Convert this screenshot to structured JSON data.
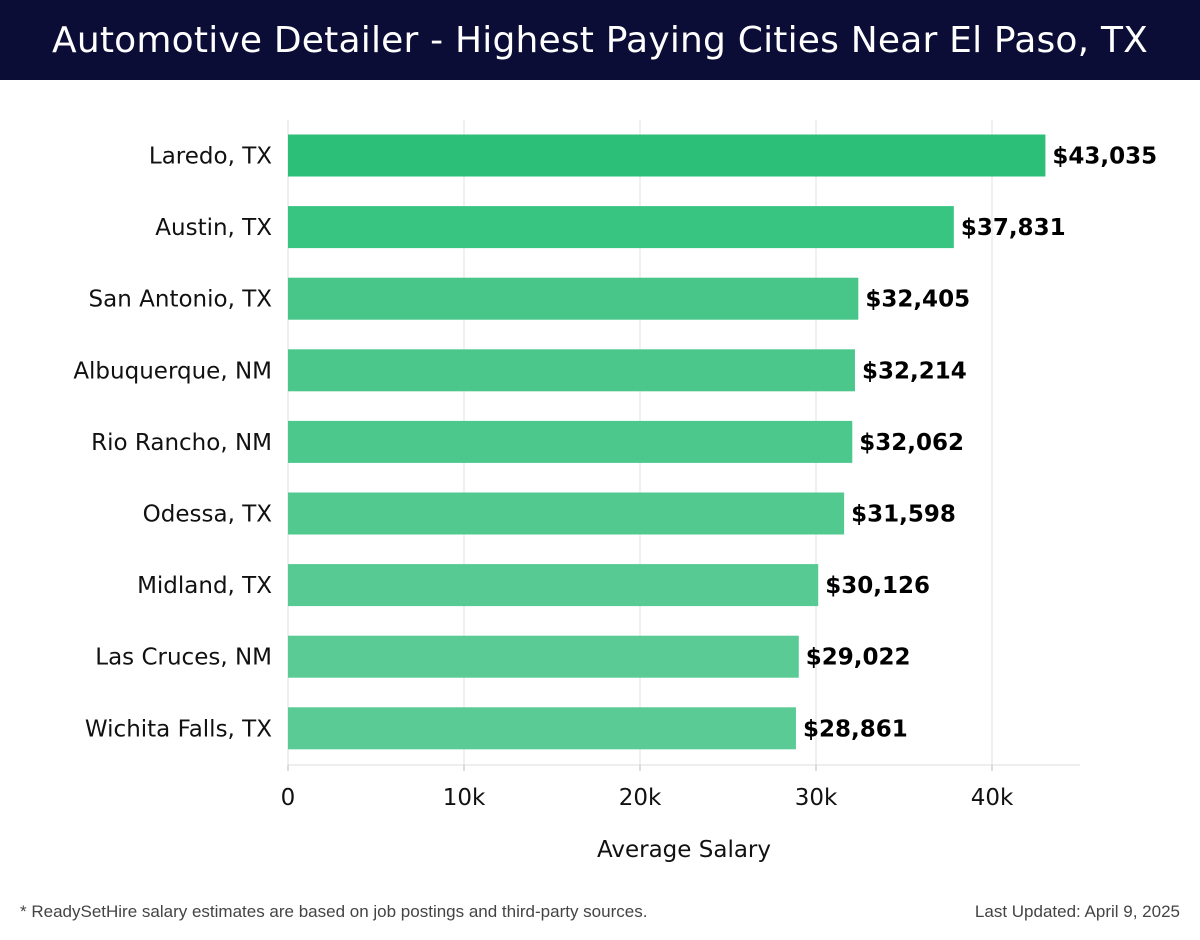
{
  "chart_data": {
    "type": "bar",
    "orientation": "horizontal",
    "title": "Automotive Detailer - Highest Paying Cities Near El Paso, TX",
    "xlabel": "Average Salary",
    "ylabel": "",
    "xlim": [
      0,
      45000
    ],
    "x_ticks": [
      0,
      10000,
      20000,
      30000,
      40000
    ],
    "x_tick_labels": [
      "0",
      "10k",
      "20k",
      "30k",
      "40k"
    ],
    "categories": [
      "Laredo, TX",
      "Austin, TX",
      "San Antonio, TX",
      "Albuquerque, NM",
      "Rio Rancho, NM",
      "Odessa, TX",
      "Midland, TX",
      "Las Cruces, NM",
      "Wichita Falls, TX"
    ],
    "values": [
      43035,
      37831,
      32405,
      32214,
      32062,
      31598,
      30126,
      29022,
      28861
    ],
    "value_labels": [
      "$43,035",
      "$37,831",
      "$32,405",
      "$32,214",
      "$32,062",
      "$31,598",
      "$30,126",
      "$29,022",
      "$28,861"
    ],
    "grid": true,
    "legend": "none"
  },
  "colors": {
    "header_bg": "#0c0d36",
    "bar_colors": [
      "#2bbf77",
      "#38c481",
      "#48c68a",
      "#4cc78c",
      "#4dc88d",
      "#52c98f",
      "#56ca92",
      "#5acb95",
      "#5acb95"
    ]
  },
  "footer": {
    "note": "* ReadySetHire salary estimates are based on job postings and third-party sources.",
    "updated": "Last Updated: April 9, 2025"
  }
}
